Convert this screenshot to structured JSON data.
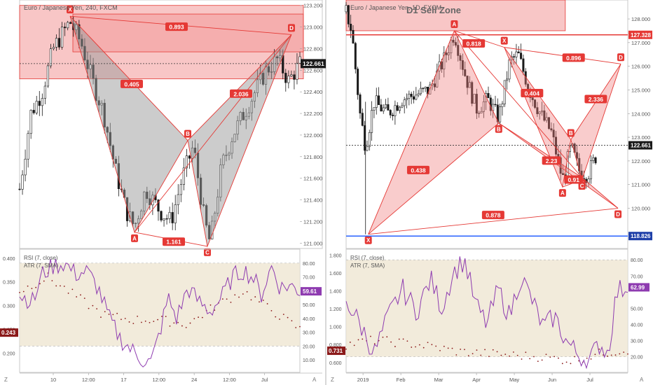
{
  "chart_data": [
    {
      "type": "candlestick",
      "title": "Euro / Japanese Yen, 240, FXCM",
      "xtick_labels": [
        "10",
        "12:00",
        "17",
        "12:00",
        "24",
        "12:00",
        "Jul"
      ],
      "ytick_labels": [
        "123.200",
        "123.000",
        "122.800",
        "122.600",
        "122.400",
        "122.200",
        "122.000",
        "121.800",
        "121.600",
        "121.400",
        "121.200",
        "121.000"
      ],
      "ylim": [
        120.95,
        123.25
      ],
      "last_price": "122.661",
      "last_price_value": 122.661,
      "pattern_points": [
        {
          "name": "X",
          "x": 0.18,
          "y": 123.1
        },
        {
          "name": "A",
          "x": 0.41,
          "y": 121.1
        },
        {
          "name": "B",
          "x": 0.6,
          "y": 121.95
        },
        {
          "name": "C",
          "x": 0.67,
          "y": 120.97
        },
        {
          "name": "D",
          "x": 0.97,
          "y": 122.93
        }
      ],
      "ratio_labels": [
        {
          "text": "0.893",
          "x": 0.56,
          "y": 123.0
        },
        {
          "text": "0.405",
          "x": 0.4,
          "y": 122.47
        },
        {
          "text": "1.161",
          "x": 0.55,
          "y": 121.01
        },
        {
          "text": "2.036",
          "x": 0.79,
          "y": 122.38
        }
      ],
      "zone": {
        "y_from": 122.52,
        "y_to": 123.2
      },
      "inner_zone": {
        "x_from": 0.19,
        "y_from": 122.77,
        "y_to": 123.12
      }
    },
    {
      "type": "candlestick",
      "title": "Euro / Japanese Yen, 1D, FXCM",
      "annotation": "D1 Sell Zone",
      "xtick_labels": [
        "2019",
        "Feb",
        "Mar",
        "Apr",
        "May",
        "Jun",
        "Jul"
      ],
      "ytick_labels": [
        "128.000",
        "127.000",
        "126.000",
        "125.000",
        "124.000",
        "123.000",
        "122.000",
        "121.000",
        "120.000",
        "119.000"
      ],
      "ylim": [
        118.3,
        128.8
      ],
      "last_price": "122.661",
      "last_price_value": 122.661,
      "resistance": {
        "label": "127.328",
        "value": 127.328
      },
      "support": {
        "label": "118.826",
        "value": 118.826
      },
      "pattern1_points": [
        {
          "name": "X",
          "x": 0.08,
          "y": 118.9
        },
        {
          "name": "A",
          "x": 0.39,
          "y": 127.5
        },
        {
          "name": "B",
          "x": 0.55,
          "y": 123.6
        },
        {
          "name": "C",
          "x": 0.85,
          "y": 121.3
        },
        {
          "name": "D",
          "x": 0.98,
          "y": 120.0
        }
      ],
      "pattern2_points": [
        {
          "name": "X",
          "x": 0.57,
          "y": 126.8
        },
        {
          "name": "A",
          "x": 0.78,
          "y": 120.9
        },
        {
          "name": "B",
          "x": 0.81,
          "y": 122.9
        },
        {
          "name": "C",
          "x": 0.85,
          "y": 121.2
        },
        {
          "name": "D",
          "x": 0.99,
          "y": 126.1
        }
      ],
      "ratio_labels": [
        {
          "text": "0.818",
          "x": 0.46,
          "y": 126.95
        },
        {
          "text": "0.896",
          "x": 0.82,
          "y": 126.35
        },
        {
          "text": "0.404",
          "x": 0.67,
          "y": 124.85
        },
        {
          "text": "2.336",
          "x": 0.9,
          "y": 124.6
        },
        {
          "text": "0.438",
          "x": 0.26,
          "y": 121.6
        },
        {
          "text": "2.23",
          "x": 0.74,
          "y": 122.0
        },
        {
          "text": "0.91",
          "x": 0.82,
          "y": 121.2
        },
        {
          "text": "0.878",
          "x": 0.53,
          "y": 119.7
        }
      ],
      "zone": {
        "x_to": 0.79,
        "y_from": 127.5,
        "y_to": 128.8
      }
    }
  ],
  "indicators": [
    {
      "label_rsi": "RSI (7, close)",
      "label_atr": "ATR (7, SMA)",
      "left_ticks": [
        "0.400",
        "0.350",
        "0.300",
        "0.250",
        "0.200"
      ],
      "right_ticks": [
        "80.00",
        "70.00",
        "60.00",
        "50.00",
        "40.00",
        "30.00",
        "20.00",
        "10.00"
      ],
      "atr_ylim": [
        0.165,
        0.41
      ],
      "rsi_ylim": [
        3,
        87
      ],
      "rsi_value": "59.61",
      "atr_value": "0.243",
      "band": [
        20,
        80
      ],
      "rsi_key": [
        [
          0,
          57
        ],
        [
          0.05,
          52
        ],
        [
          0.08,
          72
        ],
        [
          0.12,
          78
        ],
        [
          0.16,
          80
        ],
        [
          0.2,
          72
        ],
        [
          0.24,
          74
        ],
        [
          0.28,
          62
        ],
        [
          0.32,
          40
        ],
        [
          0.36,
          25
        ],
        [
          0.4,
          17
        ],
        [
          0.44,
          10
        ],
        [
          0.47,
          8
        ],
        [
          0.5,
          30
        ],
        [
          0.53,
          55
        ],
        [
          0.56,
          40
        ],
        [
          0.6,
          62
        ],
        [
          0.64,
          52
        ],
        [
          0.68,
          45
        ],
        [
          0.72,
          55
        ],
        [
          0.76,
          70
        ],
        [
          0.8,
          75
        ],
        [
          0.84,
          68
        ],
        [
          0.86,
          56
        ],
        [
          0.9,
          78
        ],
        [
          0.93,
          62
        ],
        [
          0.96,
          64
        ],
        [
          1.0,
          60
        ]
      ],
      "atr_key": [
        [
          0,
          0.33
        ],
        [
          0.1,
          0.36
        ],
        [
          0.2,
          0.32
        ],
        [
          0.3,
          0.28
        ],
        [
          0.4,
          0.27
        ],
        [
          0.5,
          0.27
        ],
        [
          0.6,
          0.26
        ],
        [
          0.7,
          0.3
        ],
        [
          0.8,
          0.33
        ],
        [
          0.9,
          0.29
        ],
        [
          1.0,
          0.25
        ]
      ]
    },
    {
      "label_rsi": "RSI (7, close)",
      "label_atr": "ATR (7, SMA)",
      "left_ticks": [
        "1.800",
        "1.600",
        "1.400",
        "1.200",
        "1.000",
        "0.800",
        "0.600"
      ],
      "right_ticks": [
        "80.00",
        "70.00",
        "60.00",
        "50.00",
        "40.00",
        "30.00",
        "20.00"
      ],
      "atr_ylim": [
        0.52,
        1.82
      ],
      "rsi_ylim": [
        12,
        84
      ],
      "rsi_value": "62.99",
      "atr_value": "0.731",
      "band": [
        20,
        80
      ],
      "rsi_key": [
        [
          0,
          55
        ],
        [
          0.05,
          40
        ],
        [
          0.1,
          22
        ],
        [
          0.15,
          45
        ],
        [
          0.2,
          62
        ],
        [
          0.25,
          48
        ],
        [
          0.3,
          68
        ],
        [
          0.34,
          50
        ],
        [
          0.38,
          72
        ],
        [
          0.42,
          80
        ],
        [
          0.46,
          52
        ],
        [
          0.5,
          40
        ],
        [
          0.54,
          62
        ],
        [
          0.58,
          45
        ],
        [
          0.62,
          70
        ],
        [
          0.66,
          55
        ],
        [
          0.7,
          38
        ],
        [
          0.74,
          45
        ],
        [
          0.78,
          30
        ],
        [
          0.82,
          22
        ],
        [
          0.86,
          17
        ],
        [
          0.9,
          28
        ],
        [
          0.93,
          22
        ],
        [
          0.96,
          60
        ],
        [
          1.0,
          64
        ]
      ],
      "atr_key": [
        [
          0,
          0.8
        ],
        [
          0.1,
          0.85
        ],
        [
          0.2,
          0.82
        ],
        [
          0.3,
          0.78
        ],
        [
          0.4,
          0.72
        ],
        [
          0.5,
          0.7
        ],
        [
          0.6,
          0.68
        ],
        [
          0.7,
          0.66
        ],
        [
          0.8,
          0.62
        ],
        [
          0.9,
          0.7
        ],
        [
          1.0,
          0.74
        ]
      ]
    }
  ],
  "colors": {
    "candle": "#1a1a1a",
    "pattern_fill": "#9a9a9a",
    "zone": "#f08080",
    "label_red": "#e53935",
    "rsi": "#8e3bb0",
    "band_fill": "#efe6d2",
    "resistance": "#e53935",
    "support": "#2962ff",
    "text_dark": "#555555",
    "axis": "#333333"
  }
}
